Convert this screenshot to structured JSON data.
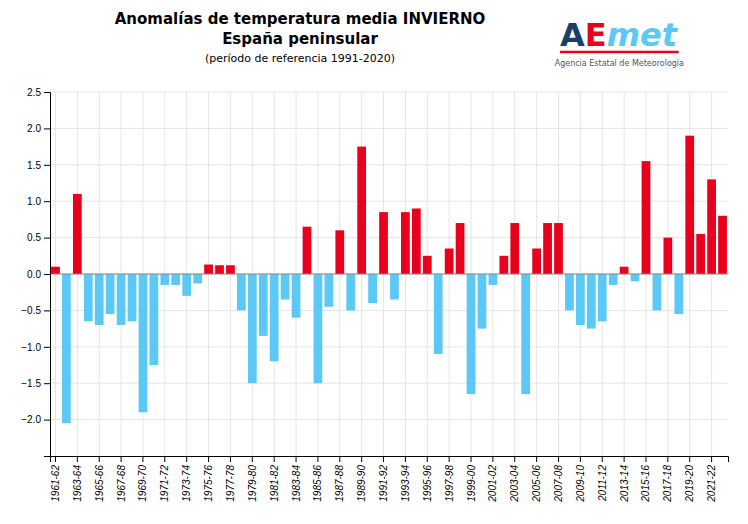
{
  "chart_data": {
    "type": "bar",
    "title": "Anomalías de temperatura media INVIERNO",
    "subtitle": "España peninsular",
    "annotations": [
      {
        "text": "(período de referencia 1991-2020)"
      },
      {
        "text": "A",
        "color": "#1a3e6e"
      },
      {
        "text": "E",
        "color": "#e8001c"
      },
      {
        "text": "met",
        "color": "#5bc8f5"
      },
      {
        "text": "Agencia Estatal de Meteorología",
        "color": "#555555"
      }
    ],
    "categories": [
      "1961-62",
      null,
      "1963-64",
      null,
      "1965-66",
      null,
      "1967-68",
      null,
      "1969-70",
      null,
      "1971-72",
      null,
      "1973-74",
      null,
      "1975-76",
      null,
      "1977-78",
      null,
      "1979-80",
      null,
      "1981-82",
      null,
      "1983-84",
      null,
      "1985-86",
      null,
      "1987-88",
      null,
      "1989-90",
      null,
      "1991-92",
      null,
      "1993-94",
      null,
      "1995-96",
      null,
      "1997-98",
      null,
      "1999-00",
      null,
      "2001-02",
      null,
      "2003-04",
      null,
      "2005-06",
      null,
      "2007-08",
      null,
      "2009-10",
      null,
      "2011-12",
      null,
      "2013-14",
      null,
      "2015-16",
      null,
      "2017-18",
      null,
      "2019-20",
      null,
      "2021-22",
      null
    ],
    "values": [
      0.1,
      -2.05,
      1.1,
      -0.65,
      -0.7,
      -0.55,
      -0.7,
      -0.65,
      -1.9,
      -1.25,
      -0.15,
      -0.15,
      -0.3,
      -0.13,
      0.13,
      0.12,
      0.12,
      -0.5,
      -1.5,
      -0.85,
      -1.2,
      -0.35,
      -0.6,
      0.65,
      -1.5,
      -0.45,
      0.6,
      -0.5,
      1.75,
      -0.4,
      0.85,
      -0.35,
      0.85,
      0.9,
      0.25,
      -1.1,
      0.35,
      0.7,
      -1.65,
      -0.75,
      -0.15,
      0.25,
      0.7,
      -1.65,
      0.35,
      0.7,
      0.7,
      -0.5,
      -0.7,
      -0.75,
      -0.65,
      -0.15,
      0.1,
      -0.1,
      1.55,
      -0.5,
      0.5,
      -0.55,
      1.9,
      0.55,
      1.3,
      0.8
    ],
    "colors": [
      "#e8001c",
      "#5bc8f5",
      "#e8001c",
      "#5bc8f5",
      "#5bc8f5",
      "#5bc8f5",
      "#5bc8f5",
      "#5bc8f5",
      "#5bc8f5",
      "#5bc8f5",
      "#5bc8f5",
      "#5bc8f5",
      "#5bc8f5",
      "#5bc8f5",
      "#e8001c",
      "#e8001c",
      "#e8001c",
      "#5bc8f5",
      "#5bc8f5",
      "#5bc8f5",
      "#5bc8f5",
      "#5bc8f5",
      "#5bc8f5",
      "#e8001c",
      "#5bc8f5",
      "#5bc8f5",
      "#e8001c",
      "#5bc8f5",
      "#e8001c",
      "#5bc8f5",
      "#e8001c",
      "#5bc8f5",
      "#e8001c",
      "#e8001c",
      "#e8001c",
      "#5bc8f5",
      "#e8001c",
      "#e8001c",
      "#5bc8f5",
      "#5bc8f5",
      "#5bc8f5",
      "#e8001c",
      "#e8001c",
      "#5bc8f5",
      "#e8001c",
      "#e8001c",
      "#e8001c",
      "#5bc8f5",
      "#5bc8f5",
      "#5bc8f5",
      "#5bc8f5",
      "#5bc8f5",
      "#e8001c",
      "#5bc8f5",
      "#e8001c",
      "#5bc8f5",
      "#e8001c",
      "#5bc8f5",
      "#e8001c",
      "#e8001c",
      "#e8001c",
      "#e8001c"
    ],
    "ylim": [
      -2.5,
      2.5
    ],
    "yticks": [
      {
        "value": -2.0,
        "label": "−2.0"
      },
      {
        "value": -1.5,
        "label": "−1.5"
      },
      {
        "value": -1.0,
        "label": "−1.0"
      },
      {
        "value": -0.5,
        "label": "−0.5"
      },
      {
        "value": 0.0,
        "label": "0.0"
      },
      {
        "value": 0.5,
        "label": "0.5"
      },
      {
        "value": 1.0,
        "label": "1.0"
      },
      {
        "value": 1.5,
        "label": "1.5"
      },
      {
        "value": 2.0,
        "label": "2.0"
      },
      {
        "value": 2.5,
        "label": "2.5"
      }
    ],
    "grid": true
  }
}
